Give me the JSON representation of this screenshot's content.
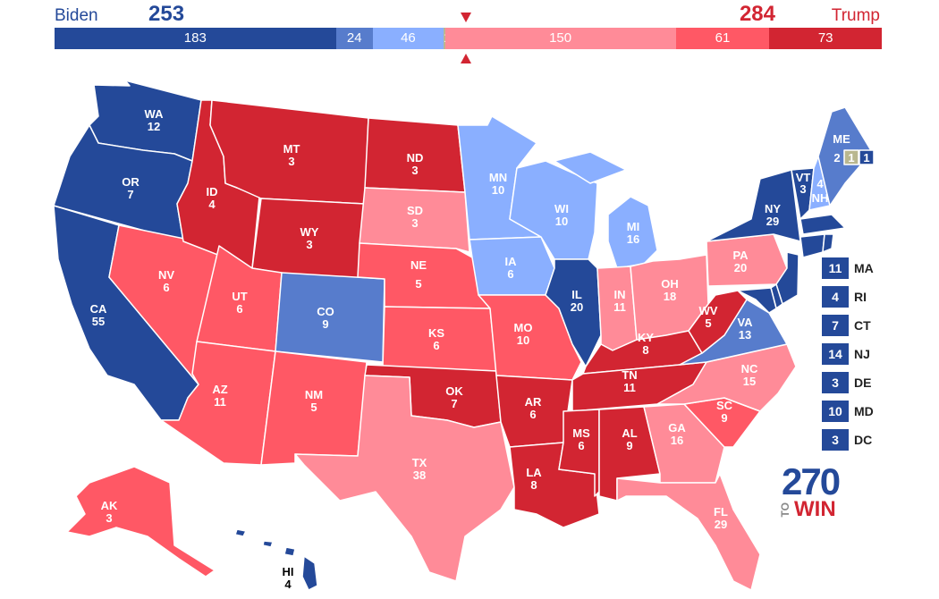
{
  "header": {
    "biden": {
      "name": "Biden",
      "total": "253"
    },
    "trump": {
      "name": "Trump",
      "total": "284"
    }
  },
  "bar_segments": [
    {
      "value": 183,
      "label": "183",
      "color": "#244999"
    },
    {
      "value": 24,
      "label": "24",
      "color": "#577ccc"
    },
    {
      "value": 46,
      "label": "46",
      "color": "#8aafff"
    },
    {
      "value": 1,
      "label": "1",
      "color": "#b9b78f"
    },
    {
      "value": 150,
      "label": "150",
      "color": "#ff8b98"
    },
    {
      "value": 61,
      "label": "61",
      "color": "#ff5865"
    },
    {
      "value": 73,
      "label": "73",
      "color": "#d22532"
    }
  ],
  "colors": {
    "safe_d": "#244999",
    "likely_d": "#577ccc",
    "lean_d": "#8aafff",
    "tossup": "#b9b78f",
    "lean_r": "#ff8b98",
    "likely_r": "#ff5865",
    "safe_r": "#d22532"
  },
  "states": {
    "WA": {
      "abbr": "WA",
      "ev": "12"
    },
    "OR": {
      "abbr": "OR",
      "ev": "7"
    },
    "CA": {
      "abbr": "CA",
      "ev": "55"
    },
    "NV": {
      "abbr": "NV",
      "ev": "6"
    },
    "ID": {
      "abbr": "ID",
      "ev": "4"
    },
    "MT": {
      "abbr": "MT",
      "ev": "3"
    },
    "WY": {
      "abbr": "WY",
      "ev": "3"
    },
    "UT": {
      "abbr": "UT",
      "ev": "6"
    },
    "AZ": {
      "abbr": "AZ",
      "ev": "11"
    },
    "CO": {
      "abbr": "CO",
      "ev": "9"
    },
    "NM": {
      "abbr": "NM",
      "ev": "5"
    },
    "ND": {
      "abbr": "ND",
      "ev": "3"
    },
    "SD": {
      "abbr": "SD",
      "ev": "3"
    },
    "NE": {
      "abbr": "NE",
      "ev": "5"
    },
    "KS": {
      "abbr": "KS",
      "ev": "6"
    },
    "OK": {
      "abbr": "OK",
      "ev": "7"
    },
    "TX": {
      "abbr": "TX",
      "ev": "38"
    },
    "MN": {
      "abbr": "MN",
      "ev": "10"
    },
    "IA": {
      "abbr": "IA",
      "ev": "6"
    },
    "MO": {
      "abbr": "MO",
      "ev": "10"
    },
    "AR": {
      "abbr": "AR",
      "ev": "6"
    },
    "LA": {
      "abbr": "LA",
      "ev": "8"
    },
    "WI": {
      "abbr": "WI",
      "ev": "10"
    },
    "IL": {
      "abbr": "IL",
      "ev": "20"
    },
    "MI": {
      "abbr": "MI",
      "ev": "16"
    },
    "IN": {
      "abbr": "IN",
      "ev": "11"
    },
    "OH": {
      "abbr": "OH",
      "ev": "18"
    },
    "KY": {
      "abbr": "KY",
      "ev": "8"
    },
    "TN": {
      "abbr": "TN",
      "ev": "11"
    },
    "MS": {
      "abbr": "MS",
      "ev": "6"
    },
    "AL": {
      "abbr": "AL",
      "ev": "9"
    },
    "GA": {
      "abbr": "GA",
      "ev": "16"
    },
    "FL": {
      "abbr": "FL",
      "ev": "29"
    },
    "SC": {
      "abbr": "SC",
      "ev": "9"
    },
    "NC": {
      "abbr": "NC",
      "ev": "15"
    },
    "VA": {
      "abbr": "VA",
      "ev": "13"
    },
    "WV": {
      "abbr": "WV",
      "ev": "5"
    },
    "PA": {
      "abbr": "PA",
      "ev": "20"
    },
    "NY": {
      "abbr": "NY",
      "ev": "29"
    },
    "VT": {
      "abbr": "VT",
      "ev": "3"
    },
    "NH": {
      "abbr": "NH",
      "ev": "4"
    },
    "ME": {
      "abbr": "ME",
      "ev": "2",
      "cd1": "1",
      "cd2": "1"
    },
    "AK": {
      "abbr": "AK",
      "ev": "3"
    },
    "HI": {
      "abbr": "HI",
      "ev": "4"
    }
  },
  "small_states": [
    {
      "ev": "11",
      "abbr": "MA"
    },
    {
      "ev": "4",
      "abbr": "RI"
    },
    {
      "ev": "7",
      "abbr": "CT"
    },
    {
      "ev": "14",
      "abbr": "NJ"
    },
    {
      "ev": "3",
      "abbr": "DE"
    },
    {
      "ev": "10",
      "abbr": "MD"
    },
    {
      "ev": "3",
      "abbr": "DC"
    }
  ],
  "logo": {
    "number": "270",
    "to": "TO",
    "win": "WIN"
  }
}
